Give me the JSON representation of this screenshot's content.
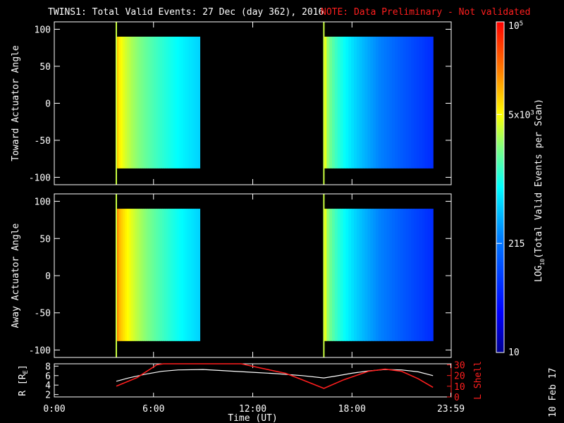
{
  "title": "TWINS1: Total Valid Events: 27 Dec (day 362), 2016",
  "note": "NOTE: Data Preliminary - Not validated",
  "stamp": "10 Feb 17",
  "chart_data": [
    {
      "type": "heatmap",
      "ylabel": "Toward Actuator Angle",
      "ylim": [
        -110,
        110
      ],
      "yticks": [
        100,
        50,
        0,
        -50,
        -100
      ],
      "xlim": [
        0,
        24
      ],
      "data_blocks": [
        {
          "t_start": 3.75,
          "t_end": 8.8,
          "angle_min": -88,
          "angle_max": 90,
          "log_level_start": 0.78,
          "log_level_end": 0.45
        },
        {
          "t_start": 16.3,
          "t_end": 22.9,
          "angle_min": -88,
          "angle_max": 90,
          "log_level_start": 0.7,
          "log_level_end": 0.2
        }
      ],
      "markers_hours": [
        3.75,
        16.3
      ]
    },
    {
      "type": "heatmap",
      "ylabel": "Away Actuator Angle",
      "ylim": [
        -110,
        110
      ],
      "yticks": [
        100,
        50,
        0,
        -50,
        -100
      ],
      "xlim": [
        0,
        24
      ],
      "data_blocks": [
        {
          "t_start": 3.75,
          "t_end": 8.8,
          "angle_min": -88,
          "angle_max": 90,
          "log_level_start": 0.85,
          "log_level_end": 0.45
        },
        {
          "t_start": 16.3,
          "t_end": 22.9,
          "angle_min": -88,
          "angle_max": 90,
          "log_level_start": 0.7,
          "log_level_end": 0.2
        }
      ],
      "markers_hours": [
        3.75,
        16.3
      ]
    },
    {
      "type": "line",
      "ylabel_left": "R [R",
      "ylabel_left_sub": "E",
      "ylabel_left_close": "]",
      "ylabel_right": "L Shell",
      "yticks_left": [
        8,
        6,
        4,
        2
      ],
      "ylim_left": [
        1.5,
        8.5
      ],
      "yticks_right": [
        30,
        20,
        10,
        0
      ],
      "ylim_right": [
        0,
        31
      ],
      "xlabel": "Time (UT)",
      "xticks": [
        "0:00",
        "6:00",
        "12:00",
        "18:00",
        "23:59"
      ],
      "xtick_hours": [
        0,
        6,
        12,
        18,
        23.98
      ],
      "series": [
        {
          "label": "R",
          "color": "#ffffff",
          "x": [
            3.75,
            4.5,
            5.5,
            6.5,
            7.5,
            9,
            10.5,
            12,
            13.5,
            15,
            16.3,
            17,
            18,
            19,
            20,
            21,
            22,
            22.9
          ],
          "y": [
            4.8,
            5.5,
            6.3,
            6.9,
            7.2,
            7.3,
            7.0,
            6.7,
            6.4,
            6.0,
            5.5,
            5.9,
            6.5,
            7.0,
            7.3,
            7.2,
            6.8,
            6.0
          ]
        },
        {
          "label": "L Shell",
          "color": "#ff1e1e",
          "x": [
            3.75,
            5.0,
            6.2,
            6.6,
            11.3,
            12.5,
            14.0,
            15.0,
            16.3,
            17.5,
            19.0,
            20.0,
            21.0,
            22.0,
            22.9
          ],
          "y": [
            10,
            18,
            30,
            31,
            31,
            27,
            22,
            16,
            8,
            16,
            24,
            26,
            24,
            17,
            9
          ]
        }
      ]
    }
  ],
  "colorbar": {
    "label_prefix": "LOG",
    "label_sub": "10",
    "label_suffix": "(Total Valid Events per Scan)",
    "ticks": [
      {
        "base": "10",
        "exp": "5",
        "level": 1.0
      },
      {
        "base": "5x10",
        "exp": "3",
        "level": 0.72
      },
      {
        "base": "215",
        "exp": "",
        "level": 0.33
      },
      {
        "base": "10",
        "exp": "",
        "level": 0.0
      }
    ]
  }
}
